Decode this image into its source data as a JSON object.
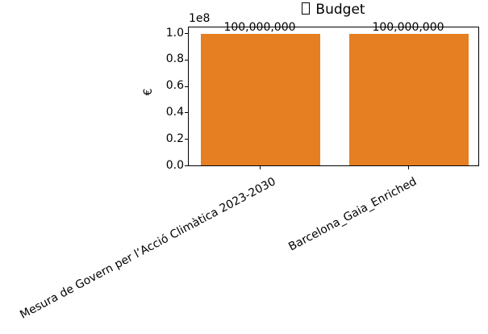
{
  "chart_data": {
    "type": "bar",
    "title": "Budget",
    "title_prefix_icon": "missing-glyph-box",
    "categories": [
      "Mesura de Govern per l’Acció Climàtica 2023-2030",
      "Barcelona_Gaia_Enriched"
    ],
    "values": [
      100000000,
      100000000
    ],
    "bar_labels": [
      "100,000,000",
      "100,000,000"
    ],
    "xlabel": "",
    "ylabel": "€",
    "y_axis": {
      "ticks": [
        "0.0",
        "0.2",
        "0.4",
        "0.6",
        "0.8",
        "1.0"
      ],
      "offset_label": "1e8",
      "lim": [
        0,
        105000000
      ]
    },
    "bar_color": "#e67e22",
    "grid": false,
    "legend": false
  }
}
